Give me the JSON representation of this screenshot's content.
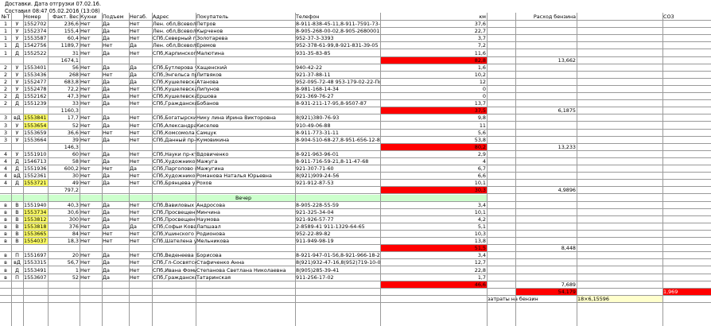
{
  "header": {
    "line1": "Доставки. Дата отгрузки 07.02.16.",
    "line2": "Составил 08:47 05.02.2016 (13:08)"
  },
  "columns": [
    "№Т",
    "",
    "Номер",
    "Факт. Вес",
    "Кухни",
    "Подъем",
    "Негаб.",
    "Адрес",
    "Покупатель",
    "Телефон",
    "км",
    "",
    "Расход бензина",
    "",
    "СОЗ"
  ],
  "rows": [
    {
      "t": "1",
      "c": [
        "1",
        "У",
        "1552702",
        "236,6",
        "Нет",
        "Да",
        "Нет",
        "Лен. обл,Всеволожский р-н,Лесколово д.,Кр",
        "Петров",
        "8-911-838-45-11,8-911-7591-73-16",
        "37,6",
        "",
        "",
        "",
        ""
      ]
    },
    {
      "t": "1",
      "c": [
        "1",
        "У",
        "1552374",
        "155,4",
        "Нет",
        "Да",
        "Нет",
        "Лен. обл,Всеволожский р-н,Новое Девяткино",
        "Кырченов",
        "8-905-268-00-02,8-905-2680001",
        "22,7",
        "",
        "",
        "",
        ""
      ]
    },
    {
      "t": "1",
      "c": [
        "1",
        "У",
        "1553587",
        "60,4",
        "Нет",
        "Да",
        "Нет",
        "СПб,Северный пр-кт,87",
        "Золотарева",
        "952-37-3-3393",
        "3,7",
        "",
        "",
        "",
        ""
      ]
    },
    {
      "t": "1",
      "c": [
        "1",
        "Д",
        "1542756",
        "1189,7",
        "Нет",
        "Нет",
        "Да",
        "Лен. обл,Всеволожский р-н,Мурино п.,Новое",
        "Еремов",
        "952-378-61-99,8-921-831-39-05",
        "7,2",
        "",
        "",
        "",
        ""
      ]
    },
    {
      "t": "1",
      "c": [
        "1",
        "Д",
        "1552522",
        "31",
        "Нет",
        "Да",
        "Нет",
        "СПб,Карпинского ул,23",
        "Малютина",
        "931-35-83-85",
        "11,6",
        "",
        "",
        "",
        ""
      ]
    },
    {
      "t": "sum",
      "c": [
        "",
        "",
        "",
        "1674,1",
        "",
        "",
        "",
        "",
        "",
        "",
        "",
        "",
        "13,662",
        "",
        ""
      ],
      "red": "82,8"
    },
    {
      "t": "2",
      "c": [
        "2",
        "У",
        "1553401",
        "56",
        "Нет",
        "Да",
        "Да",
        "СПб,Бутлерова ул,11",
        "Хащенский",
        "940-42-22",
        "1,6",
        "",
        "",
        "",
        ""
      ]
    },
    {
      "t": "2",
      "c": [
        "2",
        "У",
        "1553436",
        "268",
        "Нет",
        "Нет",
        "Да",
        "СПб,Энгельса пр-кт,31",
        "Литвяков",
        "921-37-88-11",
        "10,2",
        "",
        "",
        "",
        ""
      ]
    },
    {
      "t": "2",
      "c": [
        "2",
        "У",
        "1552477",
        "683,8",
        "Нет",
        "Да",
        "Да",
        "СПб,Кушелевская дор,5",
        "Атанова",
        "952-095-72-48 953-179-02-22-Покупател",
        "12",
        "",
        "",
        "",
        ""
      ]
    },
    {
      "t": "2",
      "c": [
        "2",
        "У",
        "1552478",
        "72,2",
        "Нет",
        "Да",
        "Нет",
        "СПб,Кушелевская дор,5",
        "Липунов",
        "8-981-168-14-34",
        "0",
        "",
        "",
        "",
        ""
      ]
    },
    {
      "t": "2",
      "c": [
        "2",
        "Д",
        "1552162",
        "47,3",
        "Нет",
        "Да",
        "Нет",
        "СПб,Кушелевская дор,5",
        "Ершова",
        "921-369-76-27",
        "0",
        "",
        "",
        "",
        ""
      ]
    },
    {
      "t": "2",
      "c": [
        "2",
        "Д",
        "1551239",
        "33",
        "Нет",
        "Да",
        "Нет",
        "СПб,Гражданский пр-кт,34",
        "Бобанов",
        "8-931-211-17-95,8-9507-87",
        "13,7",
        "",
        "",
        "",
        ""
      ]
    },
    {
      "t": "sum",
      "c": [
        "",
        "",
        "",
        "1160,3",
        "",
        "",
        "",
        "",
        "",
        "",
        "",
        "",
        "6,1875",
        "",
        ""
      ],
      "red": "37,5"
    },
    {
      "t": "3",
      "c": [
        "3",
        "вД",
        "1553841",
        "17,7",
        "Нет",
        "Да",
        "Нет",
        "СПб,Богатырский проспект,25",
        "Нику лина Ирина Викторовна",
        "8(921)380-76-93",
        "9,8",
        "",
        "",
        "",
        ""
      ],
      "hl": true
    },
    {
      "t": "3",
      "c": [
        "3",
        "У",
        "1553654",
        "52",
        "Нет",
        "Да",
        "Нет",
        "СПб,Александра Матросова ул,20",
        "Киселев",
        "910-49-06-88",
        "11",
        "",
        "",
        "",
        ""
      ],
      "hl": true
    },
    {
      "t": "3",
      "c": [
        "3",
        "У",
        "1553659",
        "36,6",
        "Нет",
        "Нет",
        "Нет",
        "СПб,Комсомола ул,23/25",
        "Самцук",
        "8-911-773-31-11",
        "5,6",
        "",
        "",
        "",
        ""
      ]
    },
    {
      "t": "3",
      "c": [
        "3",
        "У",
        "1553664",
        "39",
        "Нет",
        "Да",
        "Нет",
        "СПб,Данный пр-кт,23",
        "Кумовикина",
        "8-904-510-68-27,8-951-656-12-84",
        "53,8",
        "",
        "",
        "",
        ""
      ]
    },
    {
      "t": "sum",
      "c": [
        "",
        "",
        "",
        "146,3",
        "",
        "",
        "",
        "",
        "",
        "",
        "",
        "",
        "13,233",
        "",
        ""
      ],
      "red": "80,2"
    },
    {
      "t": "4",
      "c": [
        "4",
        "У",
        "1551910",
        "60",
        "Нет",
        "Да",
        "Нет",
        "СПб,Науки пр-кт,10",
        "Вдовиченко",
        "8-921-963-96-01",
        "2,9",
        "",
        "",
        "",
        ""
      ]
    },
    {
      "t": "4",
      "c": [
        "4",
        "Д",
        "1546713",
        "58",
        "Нет",
        "Да",
        "Нет",
        "СПб,Художников пр-кт,2",
        "Мажуга",
        "8-911-716-59-21,8-11-47-68",
        "4",
        "",
        "",
        "",
        ""
      ]
    },
    {
      "t": "4",
      "c": [
        "4",
        "Д",
        "1551936",
        "600,2",
        "Нет",
        "Нет",
        "Да",
        "СПб,Парголово п.,Федора Абрамова ул,23",
        "Мажугина",
        "921-307-71-60",
        "6,7",
        "",
        "",
        "",
        ""
      ]
    },
    {
      "t": "4",
      "c": [
        "4",
        "вД",
        "1552361",
        "30",
        "Нет",
        "Да",
        "Нет",
        "СПб,Художников,31",
        "Романова Наталья Юрьевна",
        "8(921)909-24-56",
        "6,6",
        "",
        "",
        "",
        ""
      ]
    },
    {
      "t": "4",
      "c": [
        "4",
        "Д",
        "1553721",
        "49",
        "Нет",
        "Да",
        "Нет",
        "СПб,Брянцева ул,13",
        "Рохов",
        "921-912-87-53",
        "10,1",
        "",
        "",
        "",
        ""
      ],
      "hl": true
    },
    {
      "t": "sum",
      "c": [
        "",
        "",
        "",
        "797,2",
        "",
        "",
        "",
        "",
        "",
        "",
        "",
        "",
        "4,9896",
        "",
        ""
      ],
      "red": "30,3"
    },
    {
      "t": "vecher",
      "label": "Вечер"
    },
    {
      "t": "5",
      "c": [
        "в",
        "В",
        "1551940",
        "40,3",
        "Нет",
        "Да",
        "Нет",
        "СПб,Вавиловых ул,10",
        "Андросова",
        "8-905-228-55-59",
        "3,4",
        "",
        "",
        "",
        ""
      ]
    },
    {
      "t": "5",
      "c": [
        "в",
        "В",
        "1553734",
        "30,6",
        "Нет",
        "Да",
        "Нет",
        "СПб,Просвещения пр-кт,Миклухо Маклая,25",
        "Минчина",
        "921-325-34-04",
        "10,1",
        "",
        "",
        "",
        ""
      ],
      "hl": true
    },
    {
      "t": "5",
      "c": [
        "в",
        "В",
        "1553812",
        "300",
        "Нет",
        "Да",
        "Нет",
        "СПб,Просвещения пр-кт,14",
        "Наумова",
        "921-926-57-77",
        "4,2",
        "",
        "",
        "",
        ""
      ],
      "hl": true
    },
    {
      "t": "5",
      "c": [
        "в",
        "В",
        "1553818",
        "376",
        "Нет",
        "Да",
        "Да",
        "СПб,Софьи Ковалевской ул,16",
        "Лапшаал",
        "2-8589-41 911-1329-64-65",
        "5,1",
        "",
        "",
        "",
        ""
      ],
      "hl": true
    },
    {
      "t": "5",
      "c": [
        "в",
        "В",
        "1553665",
        "84",
        "Нет",
        "Нет",
        "Нет",
        "СПб,Ушинского ул,28",
        "Родионова",
        "952-22-89-82",
        "10,3",
        "",
        "",
        "",
        ""
      ],
      "hl": true
    },
    {
      "t": "5",
      "c": [
        "в",
        "В",
        "1554037",
        "18,3",
        "Нет",
        "Нет",
        "Нет",
        "СПб,Шателена ул,18",
        "Мельникова",
        "911-949-98-19",
        "13,8",
        "",
        "",
        "",
        ""
      ],
      "hl": true
    },
    {
      "t": "sum",
      "c": [
        "",
        "",
        "",
        "",
        "",
        "",
        "",
        "",
        "",
        "",
        "",
        "",
        "8,448",
        "",
        ""
      ],
      "red": "51,5"
    },
    {
      "t": "6",
      "c": [
        "в",
        "П",
        "1551697",
        "20",
        "Нет",
        "Да",
        "Нет",
        "СПб,Веденеева ул,2",
        "Борисова",
        "8-921-947-01-56,8-921-966-18-28",
        "3,4",
        "",
        "",
        "",
        ""
      ]
    },
    {
      "t": "6",
      "c": [
        "в",
        "вД",
        "1553315",
        "56,7",
        "Нет",
        "Да",
        "Нет",
        "СПб,Гл-Сосвятская улица,18/21",
        "Стафиченко Анна",
        "8(921)932-47-16,8(952)719-10-03",
        "12,7",
        "",
        "",
        "",
        ""
      ]
    },
    {
      "t": "6",
      "c": [
        "в",
        "Д",
        "1553491",
        "1",
        "Нет",
        "Да",
        "Нет",
        "СПб,Ивана Фомина улица,5",
        "Степанова Светлана Николаевна",
        "8(905)285-39-41",
        "22,8",
        "",
        "",
        "",
        ""
      ]
    },
    {
      "t": "6",
      "c": [
        "в",
        "П",
        "1553607",
        "52",
        "Нет",
        "Да",
        "Нет",
        "СПб,Гражданский пр-кт,23",
        "Татаринская",
        "911-256-17-02",
        "1,7",
        "",
        "",
        "",
        ""
      ]
    },
    {
      "t": "sum",
      "c": [
        "",
        "",
        "",
        "",
        "",
        "",
        "",
        "",
        "",
        "",
        "",
        "",
        "7,689",
        "",
        ""
      ],
      "red": "46,6"
    },
    {
      "t": "total",
      "c": [
        "",
        "",
        "",
        "",
        "",
        "",
        "",
        "",
        "",
        "",
        "",
        "",
        "",
        "",
        ""
      ]
    },
    {
      "t": "blank",
      "c": [
        "",
        "",
        "",
        "",
        "",
        "",
        "",
        "",
        "",
        "",
        "",
        "",
        "",
        "",
        ""
      ]
    }
  ],
  "totals": {
    "row_total_fuel": "54,179",
    "row_total_soz": "1,969",
    "fuel_label": "затраты на бензин",
    "fuel_value": "18×6,15596"
  },
  "colors": {
    "red": "#ff0000",
    "highlight": "#ffff66",
    "vecher": "#ccffcc",
    "grid": "#9a9a9a",
    "fuel_bg": "#ffffcc"
  }
}
